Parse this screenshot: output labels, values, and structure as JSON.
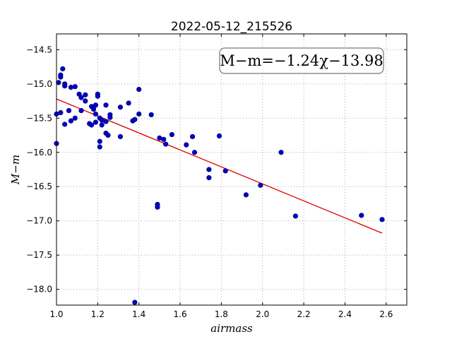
{
  "chart_data": {
    "type": "scatter",
    "title": "2022-05-12_215526",
    "xlabel": "airmass",
    "ylabel": "M−m",
    "xlim": [
      1.0,
      2.7
    ],
    "ylim": [
      -18.23,
      -14.27
    ],
    "y_inverted": true,
    "grid": true,
    "x_ticks": [
      1.0,
      1.2,
      1.4,
      1.6,
      1.8,
      2.0,
      2.2,
      2.4,
      2.6
    ],
    "x_tick_labels": [
      "1.0",
      "1.2",
      "1.4",
      "1.6",
      "1.8",
      "2.0",
      "2.2",
      "2.4",
      "2.6"
    ],
    "y_ticks": [
      -14.5,
      -15.0,
      -15.5,
      -16.0,
      -16.5,
      -17.0,
      -17.5,
      -18.0
    ],
    "y_tick_labels": [
      "−14.5",
      "−15.0",
      "−15.5",
      "−16.0",
      "−16.5",
      "−17.0",
      "−17.5",
      "−18.0"
    ],
    "fit_annotation": "M−m=−1.24χ−13.98",
    "fit_annotation_placement": "top-right",
    "fit": {
      "slope": -1.24,
      "intercept": -13.98,
      "x_range": [
        1.0,
        2.58
      ]
    },
    "colors": {
      "points": "#0000cc",
      "point_edge": "#000066",
      "fit_line": "#dd0000",
      "grid": "#aaaaaa"
    },
    "points": [
      {
        "x": 1.0,
        "y": -15.87
      },
      {
        "x": 1.0,
        "y": -15.44
      },
      {
        "x": 1.01,
        "y": -14.98
      },
      {
        "x": 1.02,
        "y": -15.42
      },
      {
        "x": 1.02,
        "y": -14.9
      },
      {
        "x": 1.02,
        "y": -14.87
      },
      {
        "x": 1.03,
        "y": -14.78
      },
      {
        "x": 1.04,
        "y": -15.0
      },
      {
        "x": 1.04,
        "y": -15.03
      },
      {
        "x": 1.04,
        "y": -15.59
      },
      {
        "x": 1.06,
        "y": -15.39
      },
      {
        "x": 1.07,
        "y": -15.54
      },
      {
        "x": 1.07,
        "y": -15.05
      },
      {
        "x": 1.09,
        "y": -15.5
      },
      {
        "x": 1.09,
        "y": -15.04
      },
      {
        "x": 1.11,
        "y": -15.15
      },
      {
        "x": 1.12,
        "y": -15.2
      },
      {
        "x": 1.12,
        "y": -15.39
      },
      {
        "x": 1.14,
        "y": -15.16
      },
      {
        "x": 1.14,
        "y": -15.25
      },
      {
        "x": 1.16,
        "y": -15.58
      },
      {
        "x": 1.17,
        "y": -15.6
      },
      {
        "x": 1.17,
        "y": -15.33
      },
      {
        "x": 1.18,
        "y": -15.37
      },
      {
        "x": 1.19,
        "y": -15.44
      },
      {
        "x": 1.19,
        "y": -15.31
      },
      {
        "x": 1.19,
        "y": -15.56
      },
      {
        "x": 1.2,
        "y": -15.15
      },
      {
        "x": 1.2,
        "y": -15.18
      },
      {
        "x": 1.21,
        "y": -15.5
      },
      {
        "x": 1.21,
        "y": -15.84
      },
      {
        "x": 1.21,
        "y": -15.92
      },
      {
        "x": 1.22,
        "y": -15.53
      },
      {
        "x": 1.22,
        "y": -15.6
      },
      {
        "x": 1.24,
        "y": -15.55
      },
      {
        "x": 1.24,
        "y": -15.31
      },
      {
        "x": 1.24,
        "y": -15.72
      },
      {
        "x": 1.25,
        "y": -15.75
      },
      {
        "x": 1.26,
        "y": -15.45
      },
      {
        "x": 1.26,
        "y": -15.49
      },
      {
        "x": 1.31,
        "y": -15.34
      },
      {
        "x": 1.31,
        "y": -15.77
      },
      {
        "x": 1.35,
        "y": -15.28
      },
      {
        "x": 1.37,
        "y": -15.54
      },
      {
        "x": 1.38,
        "y": -15.52
      },
      {
        "x": 1.38,
        "y": -18.19
      },
      {
        "x": 1.4,
        "y": -15.08
      },
      {
        "x": 1.4,
        "y": -15.44
      },
      {
        "x": 1.46,
        "y": -15.45
      },
      {
        "x": 1.49,
        "y": -16.76
      },
      {
        "x": 1.49,
        "y": -16.8
      },
      {
        "x": 1.5,
        "y": -15.79
      },
      {
        "x": 1.52,
        "y": -15.81
      },
      {
        "x": 1.53,
        "y": -15.88
      },
      {
        "x": 1.56,
        "y": -15.74
      },
      {
        "x": 1.63,
        "y": -15.89
      },
      {
        "x": 1.66,
        "y": -15.77
      },
      {
        "x": 1.67,
        "y": -16.0
      },
      {
        "x": 1.74,
        "y": -16.25
      },
      {
        "x": 1.74,
        "y": -16.37
      },
      {
        "x": 1.79,
        "y": -15.76
      },
      {
        "x": 1.82,
        "y": -16.27
      },
      {
        "x": 1.92,
        "y": -16.62
      },
      {
        "x": 1.99,
        "y": -16.48
      },
      {
        "x": 2.09,
        "y": -16.0
      },
      {
        "x": 2.16,
        "y": -16.93
      },
      {
        "x": 2.48,
        "y": -16.92
      },
      {
        "x": 2.58,
        "y": -16.98
      }
    ]
  }
}
